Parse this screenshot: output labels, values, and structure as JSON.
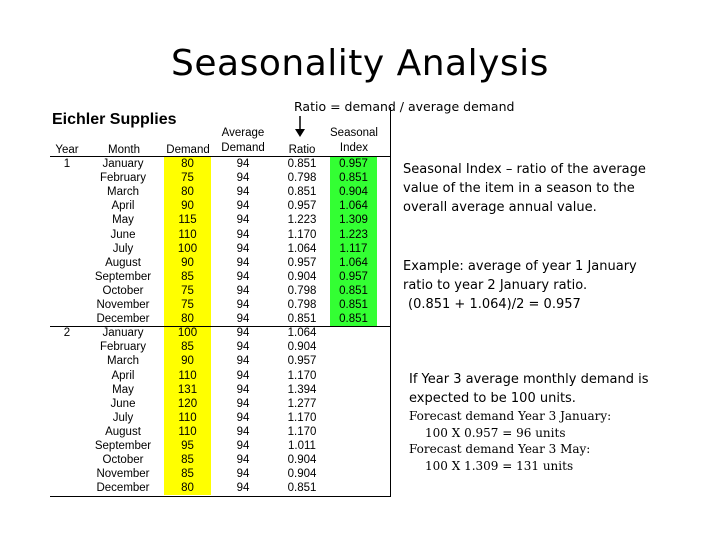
{
  "title": "Seasonality Analysis",
  "ratio_note": "Ratio = demand / average demand",
  "company": "Eichler Supplies",
  "headers": {
    "year": "Year",
    "month": "Month",
    "demand": "Demand",
    "avg1": "Average",
    "avg2": "Demand",
    "ratio": "Ratio",
    "si1": "Seasonal",
    "si2": "Index"
  },
  "rows": [
    {
      "year": "1",
      "month": "January",
      "demand": "80",
      "avg": "94",
      "ratio": "0.851",
      "index": "0.957"
    },
    {
      "year": "",
      "month": "February",
      "demand": "75",
      "avg": "94",
      "ratio": "0.798",
      "index": "0.851"
    },
    {
      "year": "",
      "month": "March",
      "demand": "80",
      "avg": "94",
      "ratio": "0.851",
      "index": "0.904"
    },
    {
      "year": "",
      "month": "April",
      "demand": "90",
      "avg": "94",
      "ratio": "0.957",
      "index": "1.064"
    },
    {
      "year": "",
      "month": "May",
      "demand": "115",
      "avg": "94",
      "ratio": "1.223",
      "index": "1.309"
    },
    {
      "year": "",
      "month": "June",
      "demand": "110",
      "avg": "94",
      "ratio": "1.170",
      "index": "1.223"
    },
    {
      "year": "",
      "month": "July",
      "demand": "100",
      "avg": "94",
      "ratio": "1.064",
      "index": "1.117"
    },
    {
      "year": "",
      "month": "August",
      "demand": "90",
      "avg": "94",
      "ratio": "0.957",
      "index": "1.064"
    },
    {
      "year": "",
      "month": "September",
      "demand": "85",
      "avg": "94",
      "ratio": "0.904",
      "index": "0.957"
    },
    {
      "year": "",
      "month": "October",
      "demand": "75",
      "avg": "94",
      "ratio": "0.798",
      "index": "0.851"
    },
    {
      "year": "",
      "month": "November",
      "demand": "75",
      "avg": "94",
      "ratio": "0.798",
      "index": "0.851"
    },
    {
      "year": "",
      "month": "December",
      "demand": "80",
      "avg": "94",
      "ratio": "0.851",
      "index": "0.851"
    },
    {
      "year": "2",
      "month": "January",
      "demand": "100",
      "avg": "94",
      "ratio": "1.064",
      "index": ""
    },
    {
      "year": "",
      "month": "February",
      "demand": "85",
      "avg": "94",
      "ratio": "0.904",
      "index": ""
    },
    {
      "year": "",
      "month": "March",
      "demand": "90",
      "avg": "94",
      "ratio": "0.957",
      "index": ""
    },
    {
      "year": "",
      "month": "April",
      "demand": "110",
      "avg": "94",
      "ratio": "1.170",
      "index": ""
    },
    {
      "year": "",
      "month": "May",
      "demand": "131",
      "avg": "94",
      "ratio": "1.394",
      "index": ""
    },
    {
      "year": "",
      "month": "June",
      "demand": "120",
      "avg": "94",
      "ratio": "1.277",
      "index": ""
    },
    {
      "year": "",
      "month": "July",
      "demand": "110",
      "avg": "94",
      "ratio": "1.170",
      "index": ""
    },
    {
      "year": "",
      "month": "August",
      "demand": "110",
      "avg": "94",
      "ratio": "1.170",
      "index": ""
    },
    {
      "year": "",
      "month": "September",
      "demand": "95",
      "avg": "94",
      "ratio": "1.011",
      "index": ""
    },
    {
      "year": "",
      "month": "October",
      "demand": "85",
      "avg": "94",
      "ratio": "0.904",
      "index": ""
    },
    {
      "year": "",
      "month": "November",
      "demand": "85",
      "avg": "94",
      "ratio": "0.904",
      "index": ""
    },
    {
      "year": "",
      "month": "December",
      "demand": "80",
      "avg": "94",
      "ratio": "0.851",
      "index": ""
    }
  ],
  "colors": {
    "demand_fill": "#ffff00",
    "index_fill": "#33ff33"
  },
  "definition": "Seasonal Index – ratio of the average value of the item in a season to the overall average annual value.",
  "example": {
    "line1": "Example: average of year 1 January ratio to year 2 January ratio.",
    "line2": "(0.851 + 1.064)/2 = 0.957"
  },
  "forecast": {
    "intro": "If Year 3 average monthly demand is expected to be 100 units.",
    "jan_label": "Forecast demand Year 3 January:",
    "jan_calc": "100 X 0.957 = 96 units",
    "may_label": "Forecast demand Year 3 May:",
    "may_calc": "100 X 1.309 = 131 units"
  }
}
